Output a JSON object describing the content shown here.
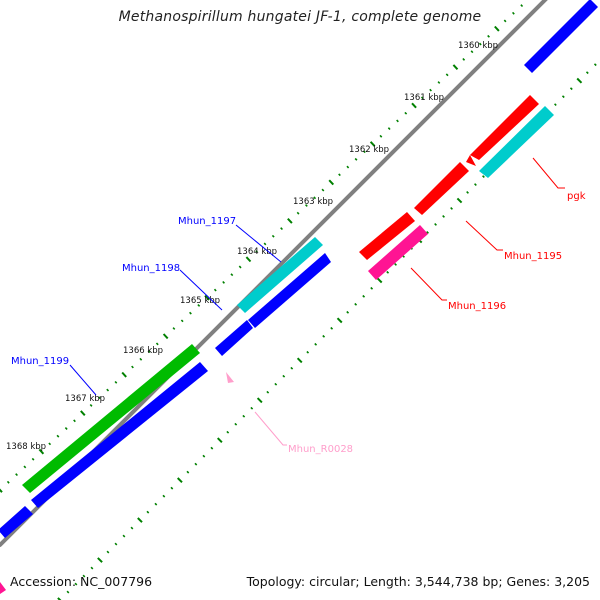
{
  "title": "Methanospirillum hungatei JF-1, complete genome",
  "footer": {
    "accession": "Accession: NC_007796",
    "summary": "Topology: circular; Length: 3,544,738 bp; Genes: 3,205"
  },
  "ticks": [
    "1360 kbp",
    "1361 kbp",
    "1362 kbp",
    "1363 kbp",
    "1364 kbp",
    "1365 kbp",
    "1366 kbp",
    "1367 kbp",
    "1368 kbp"
  ],
  "genes": [
    {
      "name": "pgk",
      "color": "#ff0000",
      "feature_color": "#00cccc"
    },
    {
      "name": "Mhun_1195",
      "color": "#ff0000",
      "feature_color": "#ff0000"
    },
    {
      "name": "Mhun_1196",
      "color": "#ff0000",
      "feature_color": "#ff1493"
    },
    {
      "name": "Mhun_1197",
      "color": "#0000ff",
      "feature_color": "#00cccc"
    },
    {
      "name": "Mhun_1198",
      "color": "#0000ff",
      "feature_color": "#0000ff"
    },
    {
      "name": "Mhun_1199",
      "color": "#0000ff",
      "feature_color": "#00bb00"
    },
    {
      "name": "Mhun_R0028",
      "color": "#ff9ecb",
      "feature_color": "#ff9ecb"
    }
  ],
  "colors": {
    "backbone": "#808080",
    "tick_marks": "#008000"
  }
}
